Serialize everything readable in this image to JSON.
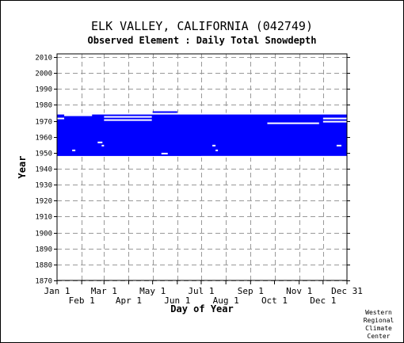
{
  "title": "ELK VALLEY, CALIFORNIA   (042749)",
  "subtitle": "Observed Element : Daily Total Snowdepth",
  "credit": [
    "Western",
    "Regional",
    "Climate",
    "Center"
  ],
  "chart_data": {
    "type": "heatmap",
    "title": "ELK VALLEY, CALIFORNIA   (042749)",
    "subtitle": "Observed Element : Daily Total Snowdepth",
    "xlabel": "Day of Year",
    "ylabel": "Year",
    "xlim": [
      1,
      365
    ],
    "ylim": [
      1870,
      2012
    ],
    "yticks": [
      1870,
      1880,
      1890,
      1900,
      1910,
      1920,
      1930,
      1940,
      1950,
      1960,
      1970,
      1980,
      1990,
      2000,
      2010
    ],
    "xticks_top": [
      {
        "label": "Jan 1",
        "day": 1
      },
      {
        "label": "Mar 1",
        "day": 60
      },
      {
        "label": "May 1",
        "day": 121
      },
      {
        "label": "Jul 1",
        "day": 182
      },
      {
        "label": "Sep 1",
        "day": 244
      },
      {
        "label": "Nov 1",
        "day": 305
      },
      {
        "label": "Dec 31",
        "day": 365
      }
    ],
    "xticks_bottom": [
      {
        "label": "Feb 1",
        "day": 32
      },
      {
        "label": "Apr 1",
        "day": 91
      },
      {
        "label": "Jun 1",
        "day": 152
      },
      {
        "label": "Aug 1",
        "day": 213
      },
      {
        "label": "Oct 1",
        "day": 274
      },
      {
        "label": "Dec 1",
        "day": 335
      }
    ],
    "grid": true,
    "data_color": "#0000ff",
    "series": [
      {
        "start_day": 1,
        "end_day": 365,
        "start_year": 1948,
        "end_year": 1974
      },
      {
        "start_day": 1,
        "end_day": 60,
        "start_year": 1974,
        "end_year": 1975
      },
      {
        "start_day": 121,
        "end_day": 365,
        "start_year": 1974,
        "end_year": 1975
      },
      {
        "start_day": 121,
        "end_day": 152,
        "start_year": 1975,
        "end_year": 1976
      }
    ],
    "missing": [
      {
        "start_day": 1,
        "end_day": 365,
        "year": 1974
      },
      {
        "start_day": 60,
        "end_day": 121,
        "year": 1974
      },
      {
        "start_day": 10,
        "end_day": 45,
        "year": 1973
      },
      {
        "start_day": 60,
        "end_day": 120,
        "year": 1972
      },
      {
        "start_day": 1,
        "end_day": 10,
        "year": 1971
      },
      {
        "start_day": 60,
        "end_day": 120,
        "year": 1970
      },
      {
        "start_day": 265,
        "end_day": 330,
        "year": 1968
      },
      {
        "start_day": 335,
        "end_day": 365,
        "year": 1971
      },
      {
        "start_day": 335,
        "end_day": 365,
        "year": 1969
      },
      {
        "start_day": 52,
        "end_day": 58,
        "year": 1956
      },
      {
        "start_day": 57,
        "end_day": 60,
        "year": 1954
      },
      {
        "start_day": 20,
        "end_day": 24,
        "year": 1951
      },
      {
        "start_day": 132,
        "end_day": 140,
        "year": 1949
      },
      {
        "start_day": 196,
        "end_day": 200,
        "year": 1954
      },
      {
        "start_day": 200,
        "end_day": 203,
        "year": 1951
      },
      {
        "start_day": 352,
        "end_day": 358,
        "year": 1954
      },
      {
        "start_day": 182,
        "end_day": 365,
        "year": 1947
      }
    ]
  }
}
